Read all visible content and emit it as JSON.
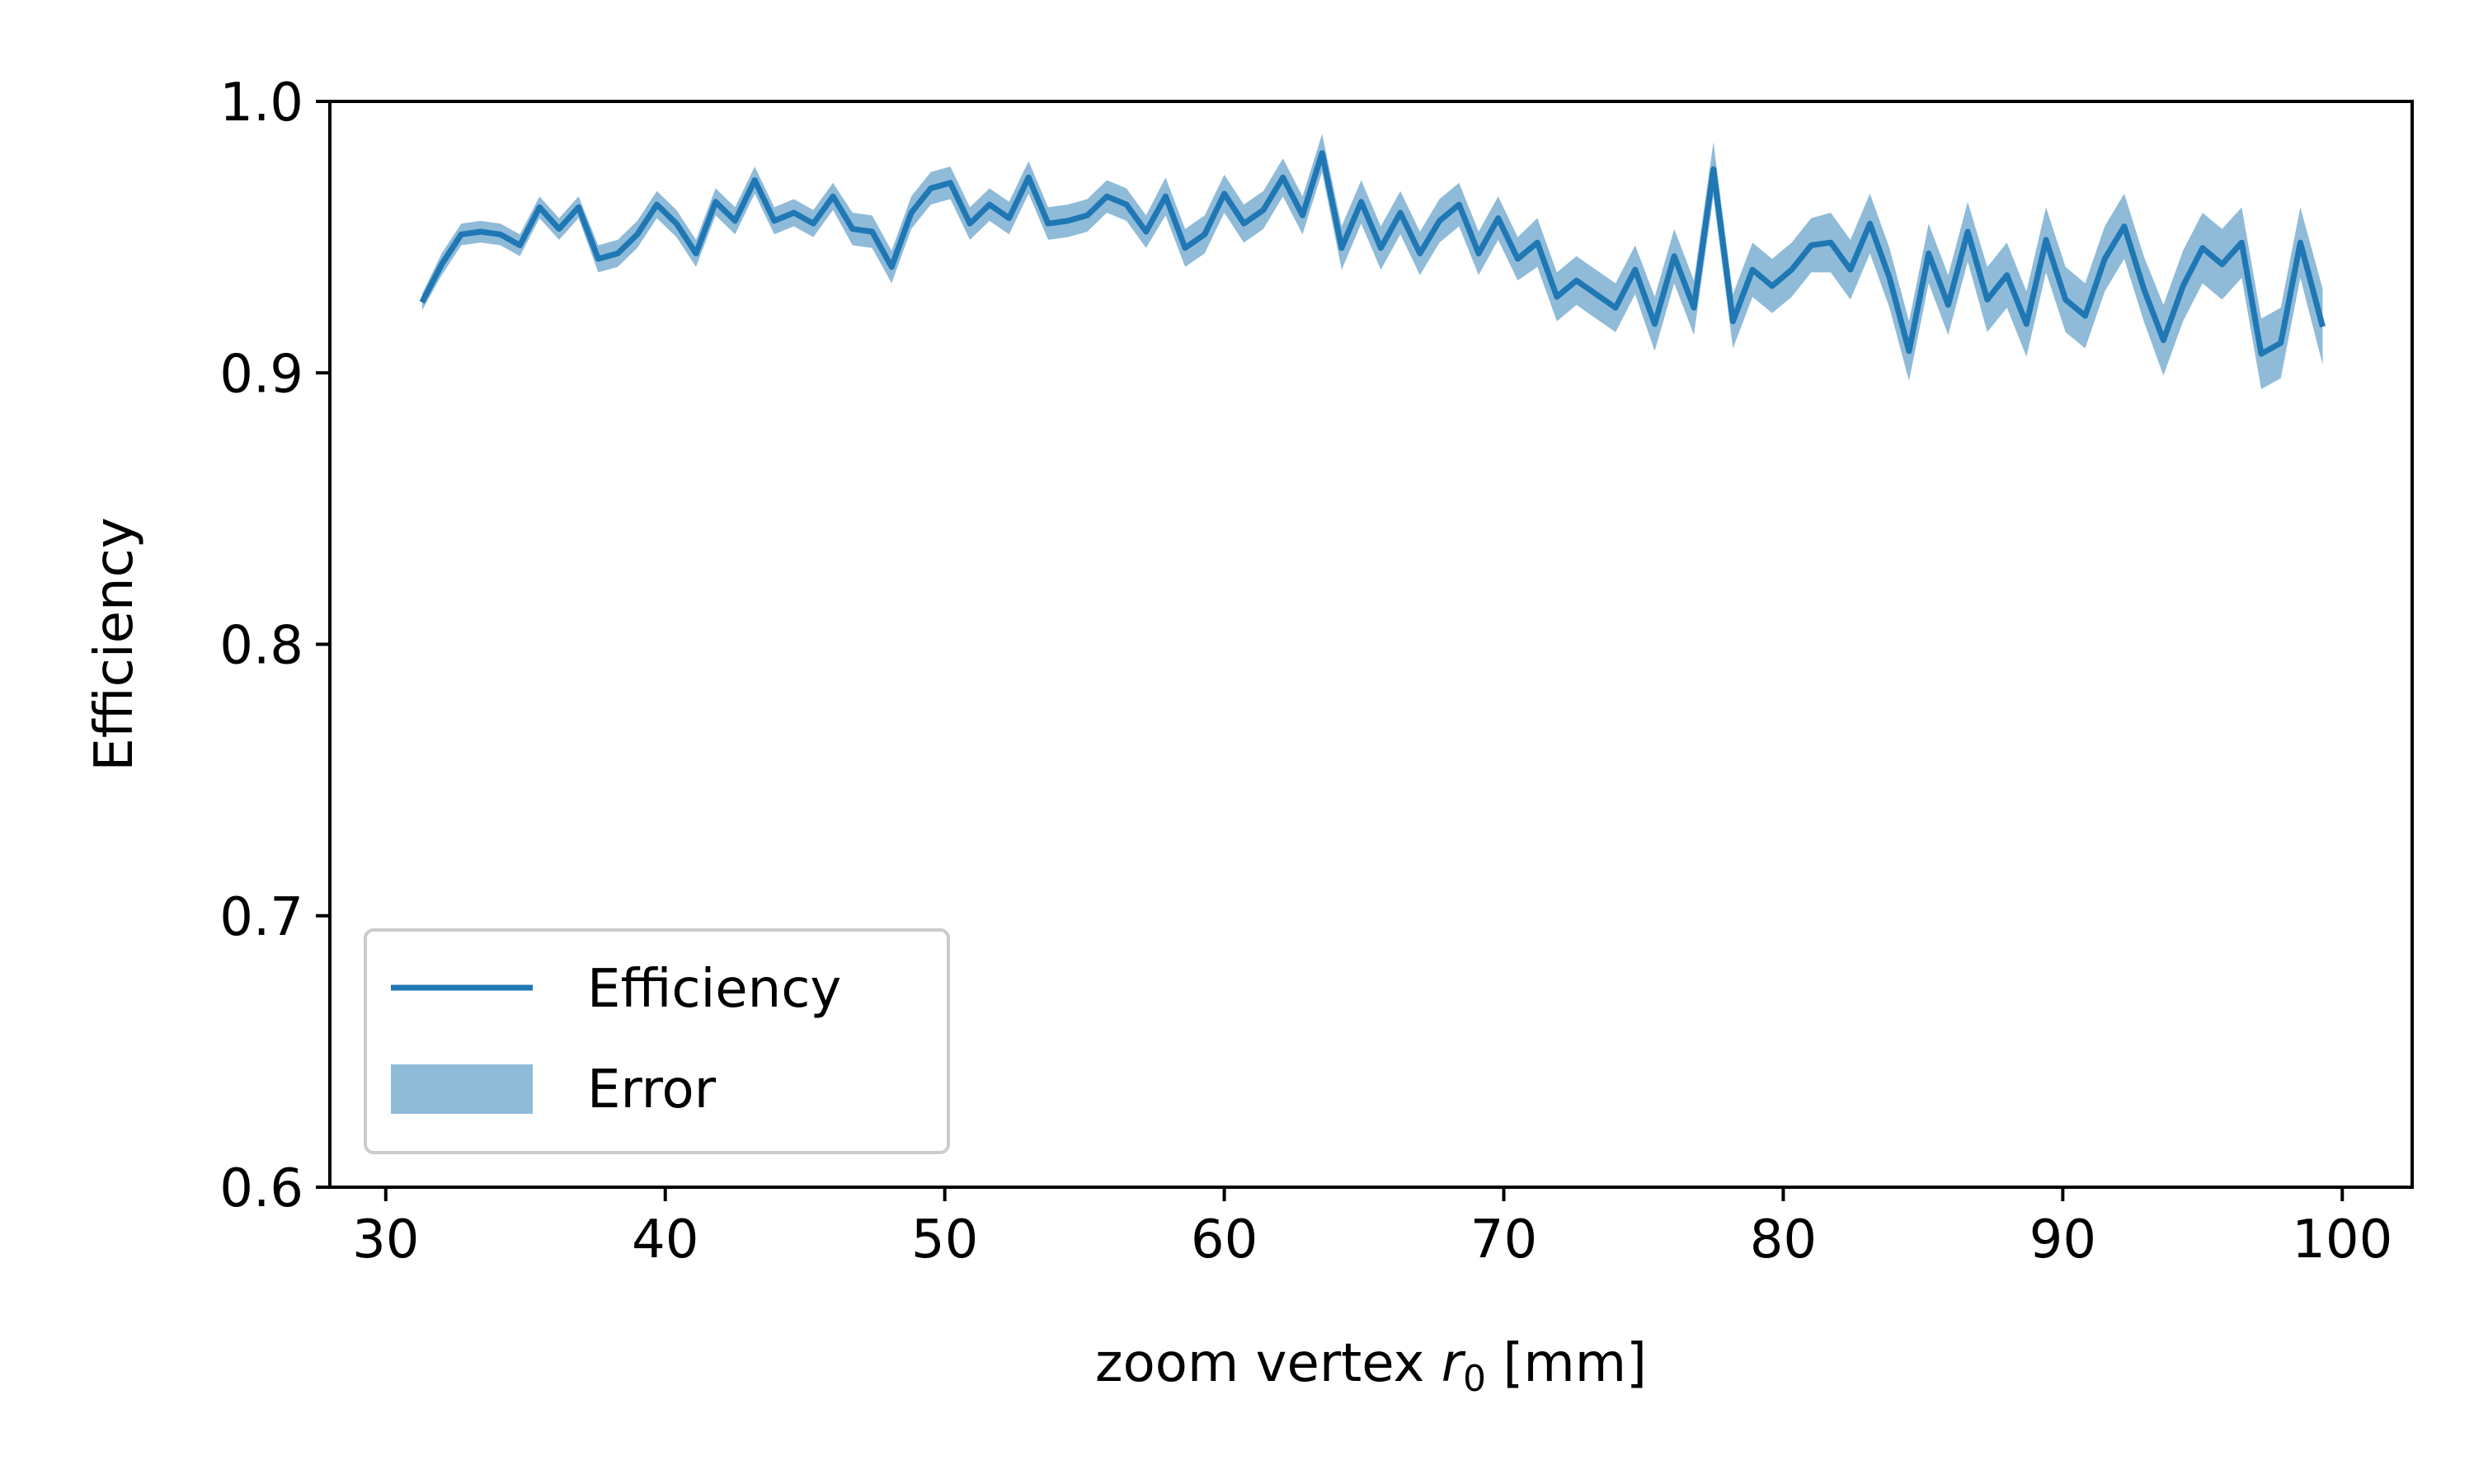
{
  "chart_data": {
    "type": "line",
    "title": "",
    "xlabel": {
      "prefix": "zoom vertex ",
      "symbol": "r",
      "subscript": "0",
      "suffix": " [mm]"
    },
    "ylabel": "Efficiency",
    "xlim": [
      28,
      102.5
    ],
    "ylim": [
      0.6,
      1.0
    ],
    "xticks": [
      30,
      40,
      50,
      60,
      70,
      80,
      90,
      100
    ],
    "xtick_labels": [
      "30",
      "40",
      "50",
      "60",
      "70",
      "80",
      "90",
      "100"
    ],
    "yticks": [
      0.6,
      0.7,
      0.8,
      0.9,
      1.0
    ],
    "ytick_labels": [
      "0.6",
      "0.7",
      "0.8",
      "0.9",
      "1.0"
    ],
    "grid": false,
    "legend": {
      "placement": "lower-left",
      "entries": [
        "Efficiency",
        "Error"
      ]
    },
    "colors": {
      "line": "#1f77b4",
      "band": "#1f77b4",
      "band_opacity": 0.5
    },
    "series": [
      {
        "name": "Efficiency",
        "x": [
          31.3,
          32.0,
          32.7,
          33.4,
          34.1,
          34.8,
          35.5,
          36.2,
          36.9,
          37.6,
          38.3,
          39.0,
          39.7,
          40.4,
          41.1,
          41.8,
          42.5,
          43.2,
          43.9,
          44.6,
          45.3,
          46.0,
          46.7,
          47.4,
          48.1,
          48.8,
          49.5,
          50.2,
          50.9,
          51.6,
          52.3,
          53.0,
          53.7,
          54.4,
          55.1,
          55.8,
          56.5,
          57.2,
          57.9,
          58.6,
          59.3,
          60.0,
          60.7,
          61.4,
          62.1,
          62.8,
          63.5,
          64.2,
          64.9,
          65.6,
          66.3,
          67.0,
          67.7,
          68.4,
          69.1,
          69.8,
          70.5,
          71.2,
          71.9,
          72.6,
          73.3,
          74.0,
          74.7,
          75.4,
          76.1,
          76.8,
          77.5,
          78.2,
          78.9,
          79.6,
          80.3,
          81.0,
          81.7,
          82.4,
          83.1,
          83.8,
          84.5,
          85.2,
          85.9,
          86.6,
          87.3,
          88.0,
          88.7,
          89.4,
          90.1,
          90.8,
          91.5,
          92.2,
          92.9,
          93.6,
          94.3,
          95.0,
          95.7,
          96.4,
          97.1,
          97.8,
          98.5,
          99.3
        ],
        "values": [
          0.926,
          0.94,
          0.951,
          0.952,
          0.951,
          0.947,
          0.961,
          0.953,
          0.961,
          0.942,
          0.944,
          0.951,
          0.962,
          0.955,
          0.944,
          0.963,
          0.956,
          0.971,
          0.956,
          0.959,
          0.955,
          0.965,
          0.953,
          0.952,
          0.939,
          0.959,
          0.968,
          0.97,
          0.955,
          0.962,
          0.957,
          0.972,
          0.955,
          0.956,
          0.958,
          0.965,
          0.962,
          0.952,
          0.965,
          0.946,
          0.951,
          0.966,
          0.955,
          0.96,
          0.972,
          0.958,
          0.981,
          0.946,
          0.963,
          0.946,
          0.959,
          0.944,
          0.956,
          0.962,
          0.944,
          0.957,
          0.942,
          0.948,
          0.928,
          0.934,
          0.929,
          0.924,
          0.938,
          0.918,
          0.943,
          0.924,
          0.975,
          0.919,
          0.938,
          0.932,
          0.938,
          0.947,
          0.948,
          0.938,
          0.955,
          0.935,
          0.908,
          0.944,
          0.925,
          0.952,
          0.927,
          0.936,
          0.918,
          0.949,
          0.927,
          0.921,
          0.942,
          0.954,
          0.931,
          0.912,
          0.932,
          0.946,
          0.94,
          0.948,
          0.907,
          0.911,
          0.948,
          0.917
        ],
        "errors": [
          0.003,
          0.004,
          0.004,
          0.004,
          0.004,
          0.004,
          0.004,
          0.004,
          0.004,
          0.005,
          0.005,
          0.005,
          0.005,
          0.005,
          0.005,
          0.005,
          0.005,
          0.005,
          0.005,
          0.005,
          0.005,
          0.005,
          0.006,
          0.006,
          0.006,
          0.006,
          0.006,
          0.006,
          0.006,
          0.006,
          0.006,
          0.006,
          0.006,
          0.006,
          0.006,
          0.006,
          0.006,
          0.006,
          0.007,
          0.007,
          0.007,
          0.007,
          0.007,
          0.007,
          0.007,
          0.007,
          0.007,
          0.008,
          0.008,
          0.008,
          0.008,
          0.008,
          0.008,
          0.008,
          0.008,
          0.008,
          0.008,
          0.009,
          0.009,
          0.009,
          0.009,
          0.009,
          0.009,
          0.01,
          0.01,
          0.01,
          0.01,
          0.01,
          0.01,
          0.01,
          0.01,
          0.01,
          0.011,
          0.011,
          0.011,
          0.011,
          0.011,
          0.011,
          0.011,
          0.011,
          0.012,
          0.012,
          0.012,
          0.012,
          0.012,
          0.012,
          0.012,
          0.012,
          0.012,
          0.013,
          0.013,
          0.013,
          0.013,
          0.013,
          0.013,
          0.013,
          0.013,
          0.014
        ]
      }
    ]
  }
}
